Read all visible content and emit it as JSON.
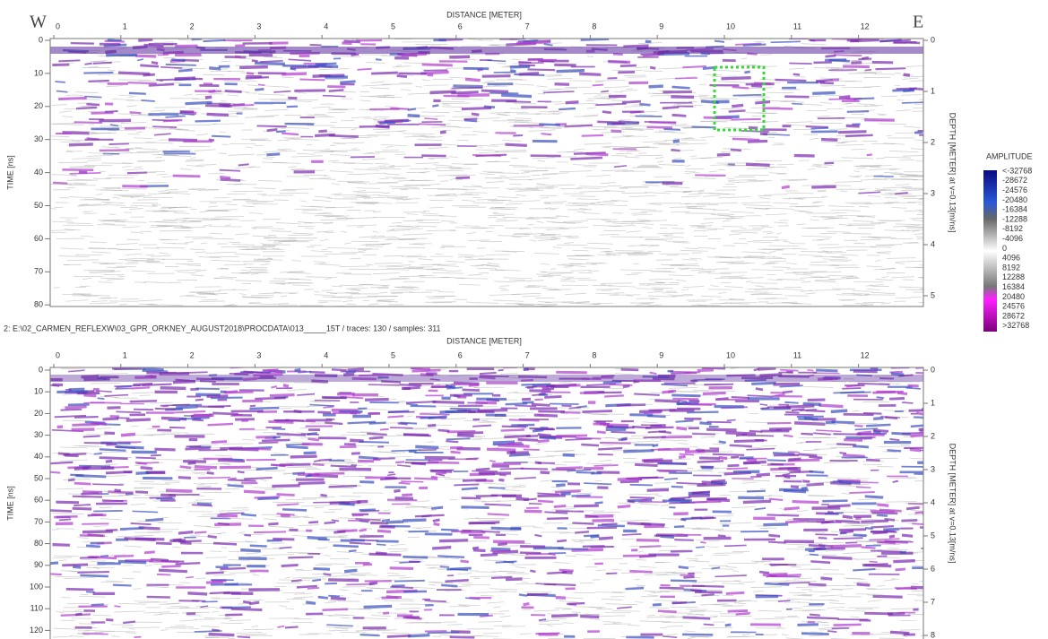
{
  "panels": [
    {
      "distance_label": "DISTANCE [METER]",
      "west": "W",
      "east": "E",
      "x_ticks": [
        "0",
        "1",
        "2",
        "3",
        "4",
        "5",
        "6",
        "7",
        "8",
        "9",
        "10",
        "11",
        "12"
      ],
      "time_label": "TIME [ns]",
      "time_ticks": [
        "0",
        "10",
        "20",
        "30",
        "40",
        "50",
        "60",
        "70",
        "80"
      ],
      "depth_label": "DEPTH [METER] at v=0.13[m/ns]",
      "depth_ticks": [
        "0",
        "1",
        "2",
        "3",
        "4",
        "5"
      ]
    },
    {
      "header": "2: E:\\02_CARMEN_REFLEXW\\03_GPR_ORKNEY_AUGUST2018\\PROCDATA\\013_____15T / traces: 130 / samples: 311",
      "distance_label": "DISTANCE [METER]",
      "x_ticks": [
        "0",
        "1",
        "2",
        "3",
        "4",
        "5",
        "6",
        "7",
        "8",
        "9",
        "10",
        "11",
        "12"
      ],
      "time_label": "TIME [ns]",
      "time_ticks": [
        "0",
        "10",
        "20",
        "30",
        "40",
        "50",
        "60",
        "70",
        "80",
        "90",
        "100",
        "110",
        "120"
      ],
      "depth_label": "DEPTH [METER] at v=0.13[m/ns]",
      "depth_ticks": [
        "0",
        "1",
        "2",
        "3",
        "4",
        "5",
        "6",
        "7",
        "8"
      ]
    }
  ],
  "colorbar": {
    "title": "AMPLITUDE",
    "labels": [
      "<-32768",
      "-28672",
      "-24576",
      "-20480",
      "-16384",
      "-12288",
      "-8192",
      "-4096",
      "0",
      "4096",
      "8192",
      "12288",
      "16384",
      "20480",
      "24576",
      "28672",
      ">32768"
    ]
  }
}
